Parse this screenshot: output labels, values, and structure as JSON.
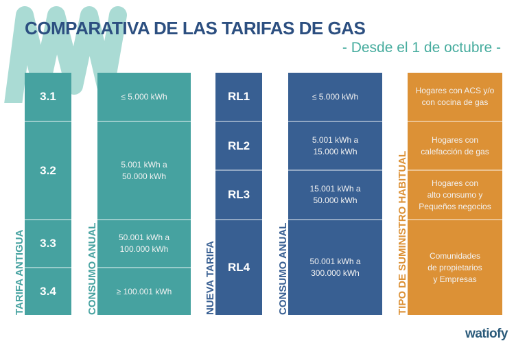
{
  "header": {
    "title": "COMPARATIVA DE LAS TARIFAS DE GAS",
    "subtitle": "- Desde el 1 de octubre -"
  },
  "colors": {
    "teal": "#46a2a0",
    "blue": "#385f92",
    "orange": "#dc9136",
    "title": "#2c4f80",
    "subtitle": "#46ac9e"
  },
  "old_tariff": {
    "label": "TARIFA ANTIGUA",
    "items": [
      "3.1",
      "3.2",
      "3.3",
      "3.4"
    ]
  },
  "old_consumption": {
    "label": "CONSUMO ANUAL",
    "items": [
      "≤ 5.000 kWh",
      "5.001 kWh a\n50.000 kWh",
      "50.001 kWh a\n100.000 kWh",
      "≥ 100.001 kWh"
    ]
  },
  "new_tariff": {
    "label": "NUEVA TARIFA",
    "items": [
      "RL1",
      "RL2",
      "RL3",
      "RL4"
    ]
  },
  "new_consumption": {
    "label": "CONSUMO ANUAL",
    "items": [
      "≤ 5.000 kWh",
      "5.001 kWh a\n15.000 kWh",
      "15.001 kWh a\n50.000 kWh",
      "50.001 kWh a\n300.000 kWh"
    ]
  },
  "supply_type": {
    "label": "TIPO DE SUMINISTRO HABITUAL",
    "items": [
      "Hogares con ACS y/o\ncon cocina de gas",
      "Hogares con\ncalefacción de gas",
      "Hogares con\nalto consumo y\nPequeños negocios",
      "Comunidades\nde propietarios\ny Empresas"
    ]
  },
  "brand": {
    "logo_text": "watiofy"
  }
}
